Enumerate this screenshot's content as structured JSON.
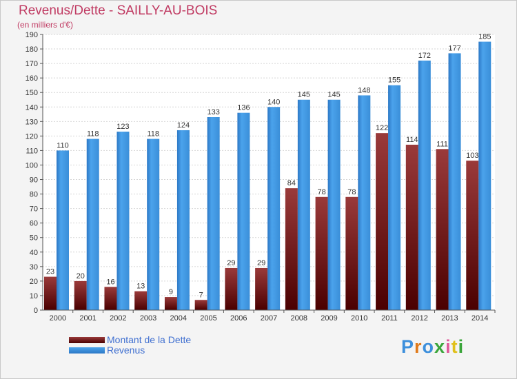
{
  "header": {
    "title": "Revenus/Dette - SAILLY-AU-BOIS",
    "subtitle": "(en milliers d'€)"
  },
  "legend": {
    "items": [
      {
        "label": "Montant de la Dette",
        "color": "#7a1e1e"
      },
      {
        "label": "Revenus",
        "color": "#3c8fdc"
      }
    ]
  },
  "logo": {
    "text": "Proxiti"
  },
  "chart_data": {
    "type": "bar",
    "title": "Revenus/Dette - SAILLY-AU-BOIS",
    "subtitle": "(en milliers d'€)",
    "xlabel": "",
    "ylabel": "",
    "ylim": [
      0,
      190
    ],
    "ytick_step": 10,
    "grid": true,
    "legend_position": "bottom-left",
    "categories": [
      "2000",
      "2001",
      "2002",
      "2003",
      "2004",
      "2005",
      "2006",
      "2007",
      "2008",
      "2009",
      "2010",
      "2011",
      "2012",
      "2013",
      "2014"
    ],
    "series": [
      {
        "name": "Montant de la Dette",
        "color": "#7a1e1e",
        "values": [
          23,
          20,
          16,
          13,
          9,
          7,
          29,
          29,
          84,
          78,
          78,
          122,
          114,
          111,
          103
        ]
      },
      {
        "name": "Revenus",
        "color": "#3c8fdc",
        "values": [
          110,
          118,
          123,
          118,
          124,
          133,
          136,
          140,
          145,
          145,
          148,
          155,
          172,
          177,
          185
        ]
      }
    ]
  }
}
